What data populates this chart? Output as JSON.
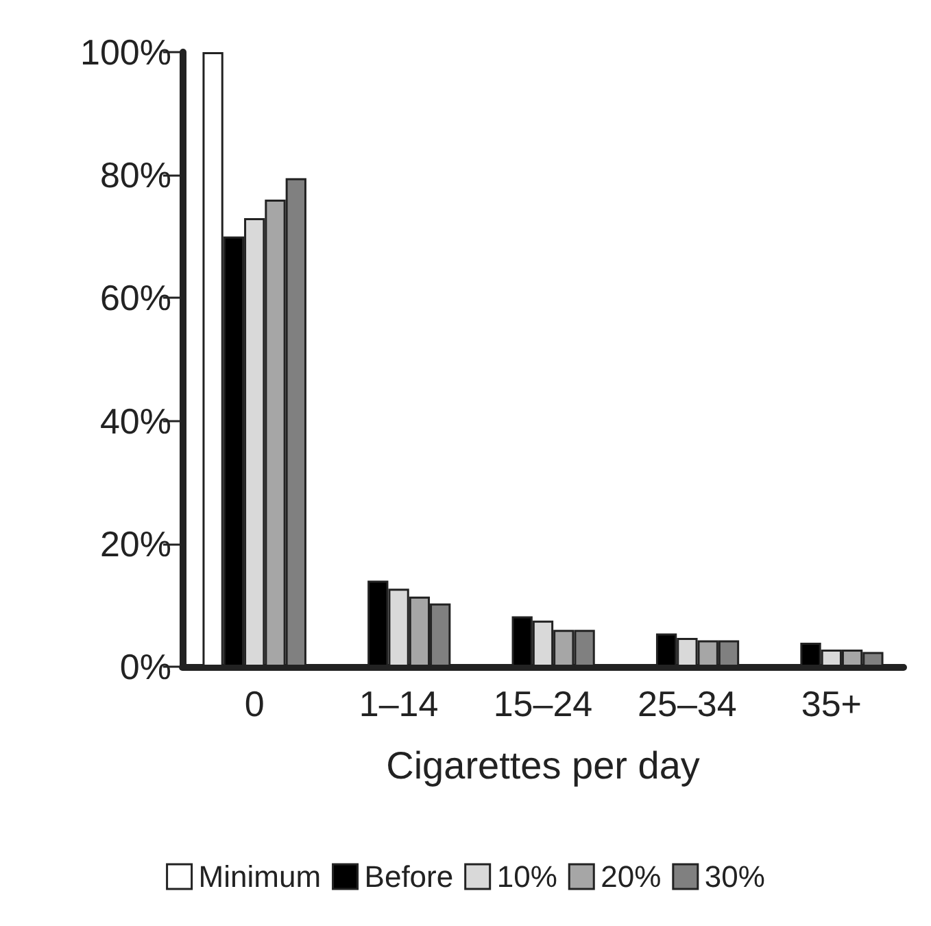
{
  "chart_data": {
    "type": "bar",
    "xlabel": "Cigarettes per day",
    "categories": [
      "0",
      "1–14",
      "15–24",
      "25–34",
      "35+"
    ],
    "series": [
      {
        "name": "Minimum",
        "color": "#ffffff",
        "values": [
          100,
          null,
          null,
          null,
          null
        ]
      },
      {
        "name": "Before",
        "color": "#000000",
        "values": [
          70,
          14,
          8.2,
          5.4,
          3.9
        ]
      },
      {
        "name": "10%",
        "color": "#d9d9d9",
        "values": [
          73,
          12.7,
          7.5,
          4.7,
          2.8
        ]
      },
      {
        "name": "20%",
        "color": "#a6a6a6",
        "values": [
          76,
          11.4,
          6,
          4.3,
          2.8
        ]
      },
      {
        "name": "30%",
        "color": "#808080",
        "values": [
          79.5,
          10.3,
          6,
          4.3,
          2.4
        ]
      }
    ],
    "ylim": [
      0,
      100
    ],
    "yticks": [
      {
        "value": 0,
        "label": "0%"
      },
      {
        "value": 20,
        "label": "20%"
      },
      {
        "value": 40,
        "label": "40%"
      },
      {
        "value": 60,
        "label": "60%"
      },
      {
        "value": 80,
        "label": "80%"
      },
      {
        "value": 100,
        "label": "100%"
      }
    ],
    "grid": false,
    "legend": "bottom"
  }
}
